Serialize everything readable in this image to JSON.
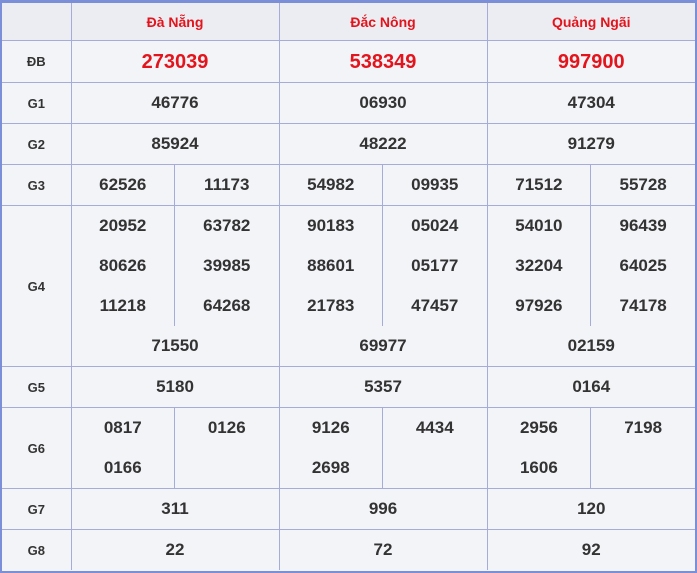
{
  "provinces": [
    "Đà Nẵng",
    "Đắc Nông",
    "Quảng Ngãi"
  ],
  "colors": {
    "accent": "#e3141b",
    "border": "#7b8fd8"
  },
  "prizes": [
    {
      "label": "ĐB",
      "results": [
        [
          "273039"
        ],
        [
          "538349"
        ],
        [
          "997900"
        ]
      ]
    },
    {
      "label": "G1",
      "results": [
        [
          "46776"
        ],
        [
          "06930"
        ],
        [
          "47304"
        ]
      ]
    },
    {
      "label": "G2",
      "results": [
        [
          "85924"
        ],
        [
          "48222"
        ],
        [
          "91279"
        ]
      ]
    },
    {
      "label": "G3",
      "results": [
        [
          "62526",
          "11173"
        ],
        [
          "54982",
          "09935"
        ],
        [
          "71512",
          "55728"
        ]
      ]
    },
    {
      "label": "G4",
      "results": [
        [
          "20952",
          "63782",
          "80626",
          "39985",
          "11218",
          "64268",
          "71550"
        ],
        [
          "90183",
          "05024",
          "88601",
          "05177",
          "21783",
          "47457",
          "69977"
        ],
        [
          "54010",
          "96439",
          "32204",
          "64025",
          "97926",
          "74178",
          "02159"
        ]
      ]
    },
    {
      "label": "G5",
      "results": [
        [
          "5180"
        ],
        [
          "5357"
        ],
        [
          "0164"
        ]
      ]
    },
    {
      "label": "G6",
      "results": [
        [
          "0817",
          "0126",
          "0166"
        ],
        [
          "9126",
          "4434",
          "2698"
        ],
        [
          "2956",
          "7198",
          "1606"
        ]
      ]
    },
    {
      "label": "G7",
      "results": [
        [
          "311"
        ],
        [
          "996"
        ],
        [
          "120"
        ]
      ]
    },
    {
      "label": "G8",
      "results": [
        [
          "22"
        ],
        [
          "72"
        ],
        [
          "92"
        ]
      ]
    }
  ]
}
